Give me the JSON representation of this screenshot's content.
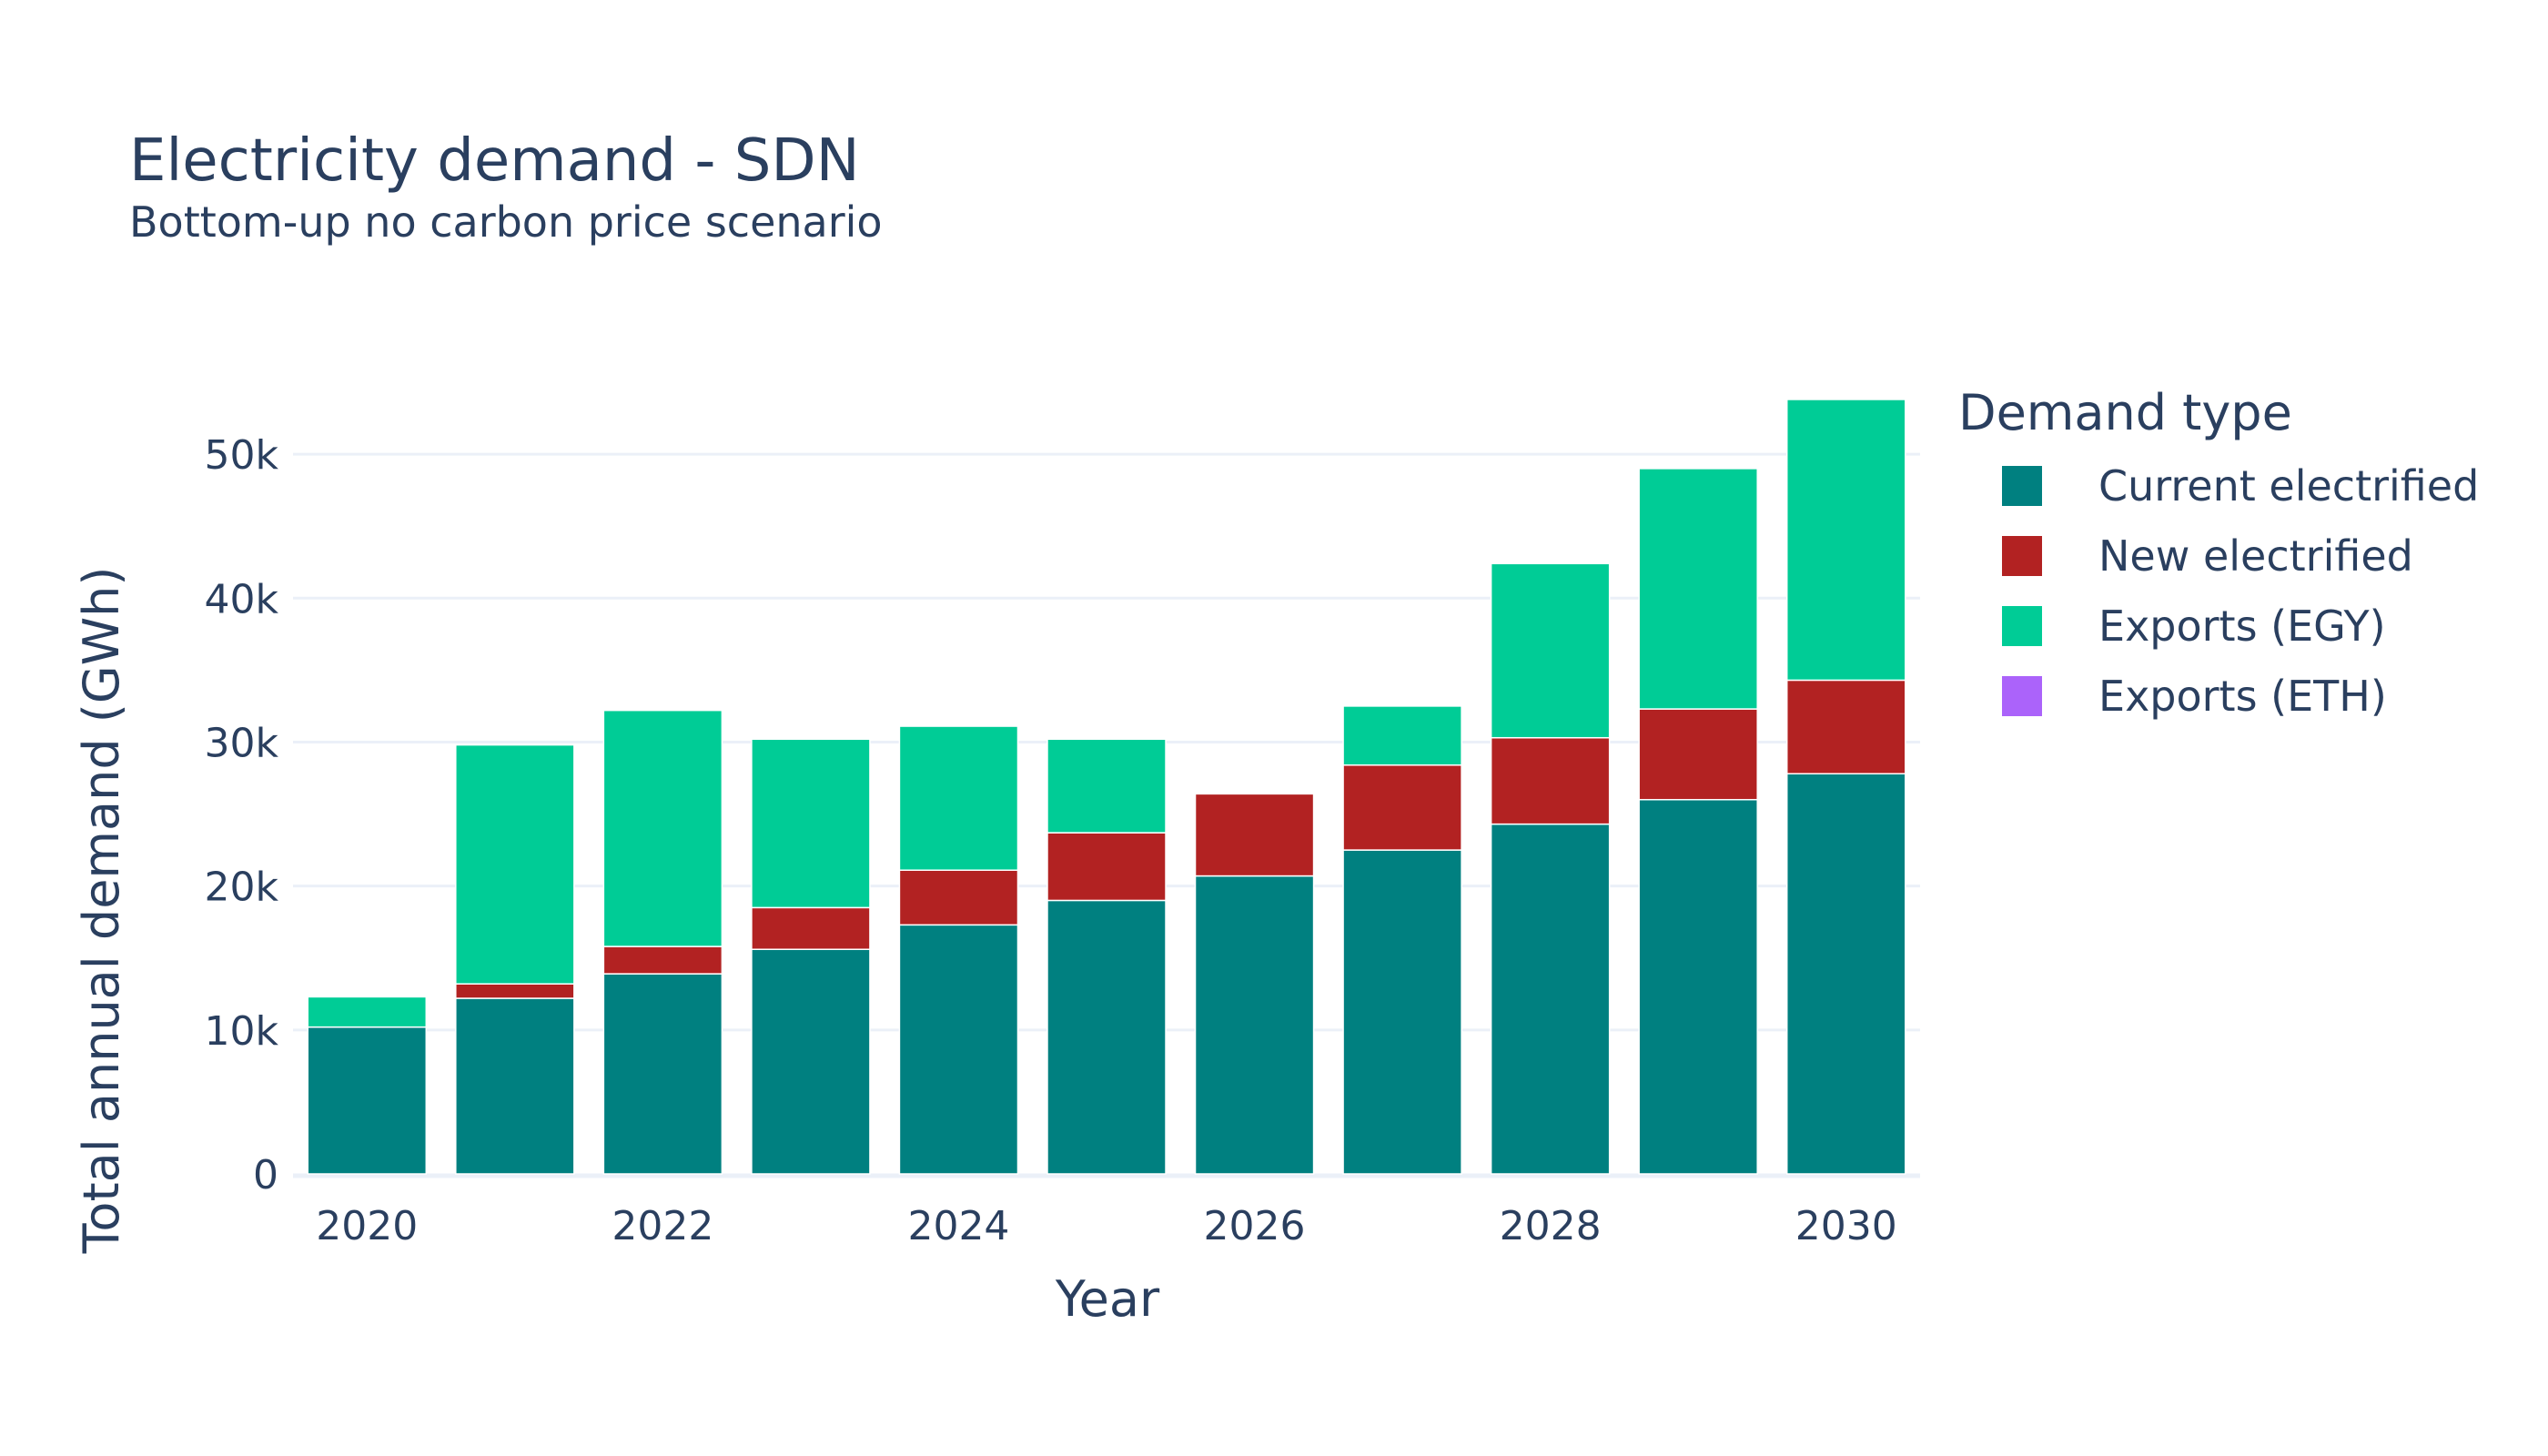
{
  "chart_data": {
    "type": "bar",
    "stacked": true,
    "title": "Electricity demand - SDN",
    "subtitle": "Bottom-up no carbon price scenario",
    "xlabel": "Year",
    "ylabel": "Total annual demand (GWh)",
    "ylim": [
      0,
      55000
    ],
    "grid": true,
    "legend_title": "Demand type",
    "legend_position": "right",
    "x": [
      2020,
      2021,
      2022,
      2023,
      2024,
      2025,
      2026,
      2027,
      2028,
      2029,
      2030
    ],
    "xticks": [
      "2020",
      "2022",
      "2024",
      "2026",
      "2028",
      "2030"
    ],
    "yticks": [
      {
        "value": 0,
        "label": "0"
      },
      {
        "value": 10000,
        "label": "10k"
      },
      {
        "value": 20000,
        "label": "20k"
      },
      {
        "value": 30000,
        "label": "30k"
      },
      {
        "value": 40000,
        "label": "40k"
      },
      {
        "value": 50000,
        "label": "50k"
      }
    ],
    "series": [
      {
        "name": "Current electrified",
        "color": "#008080",
        "values": [
          10200,
          12200,
          13900,
          15600,
          17300,
          19000,
          20700,
          22500,
          24300,
          26000,
          27800
        ]
      },
      {
        "name": "New electrified",
        "color": "#b22222",
        "values": [
          0,
          1000,
          1900,
          2900,
          3800,
          4700,
          5700,
          5900,
          6000,
          6300,
          6500
        ]
      },
      {
        "name": "Exports (EGY)",
        "color": "#00cc96",
        "values": [
          2100,
          16600,
          16400,
          11700,
          10000,
          6500,
          0,
          4100,
          12100,
          16700,
          19500
        ]
      },
      {
        "name": "Exports (ETH)",
        "color": "#ab63fa",
        "values": [
          0,
          0,
          0,
          0,
          0,
          0,
          0,
          0,
          0,
          0,
          0
        ]
      }
    ]
  }
}
